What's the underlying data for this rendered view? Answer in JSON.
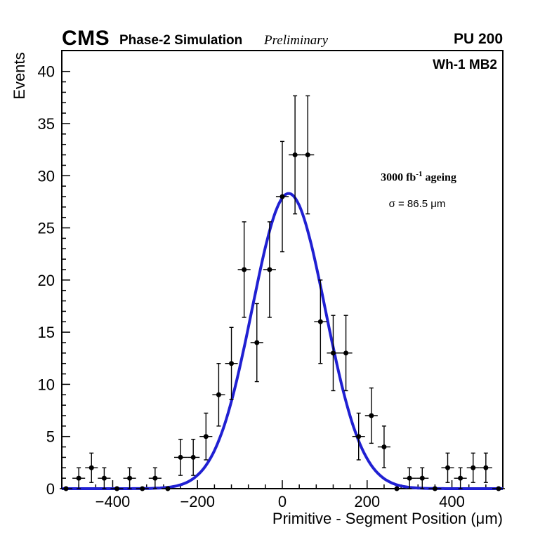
{
  "header": {
    "cms": "CMS",
    "subtitle": "Phase-2 Simulation",
    "preliminary": "Preliminary",
    "pu": "PU 200"
  },
  "annotations": {
    "region": "Wh-1 MB2",
    "ageing_prefix": "3000 fb",
    "ageing_sup": "-1",
    "ageing_suffix": " ageing",
    "sigma": "σ = 86.5 μm"
  },
  "chart_data": {
    "type": "scatter",
    "title": "",
    "xlabel": "Primitive - Segment Position (μm)",
    "ylabel": "Events",
    "xlim": [
      -520,
      520
    ],
    "ylim": [
      0,
      42
    ],
    "x_major_ticks": [
      -400,
      -200,
      0,
      200,
      400
    ],
    "x_minor_step": 40,
    "y_major_ticks": [
      0,
      5,
      10,
      15,
      20,
      25,
      30,
      35,
      40
    ],
    "y_minor_step": 1,
    "grid": false,
    "legend": "none",
    "bin_half_width": 15,
    "points": [
      [
        -510,
        0,
        0
      ],
      [
        -480,
        1,
        1
      ],
      [
        -450,
        2,
        1.41
      ],
      [
        -420,
        1,
        1
      ],
      [
        -390,
        0,
        0
      ],
      [
        -360,
        1,
        1
      ],
      [
        -330,
        0,
        0
      ],
      [
        -300,
        1,
        1
      ],
      [
        -270,
        0,
        0
      ],
      [
        -240,
        3,
        1.73
      ],
      [
        -210,
        3,
        1.73
      ],
      [
        -180,
        5,
        2.24
      ],
      [
        -150,
        9,
        3
      ],
      [
        -120,
        12,
        3.46
      ],
      [
        -90,
        21,
        4.58
      ],
      [
        -60,
        14,
        3.74
      ],
      [
        -30,
        21,
        4.58
      ],
      [
        0,
        28,
        5.29
      ],
      [
        30,
        32,
        5.66
      ],
      [
        60,
        32,
        5.66
      ],
      [
        90,
        16,
        4
      ],
      [
        120,
        13,
        3.61
      ],
      [
        150,
        13,
        3.61
      ],
      [
        180,
        5,
        2.24
      ],
      [
        210,
        7,
        2.65
      ],
      [
        240,
        4,
        2
      ],
      [
        270,
        0,
        0
      ],
      [
        300,
        1,
        1
      ],
      [
        330,
        1,
        1
      ],
      [
        360,
        0,
        0
      ],
      [
        390,
        2,
        1.41
      ],
      [
        420,
        1,
        1
      ],
      [
        450,
        2,
        1.41
      ],
      [
        480,
        2,
        1.41
      ],
      [
        510,
        0,
        0
      ]
    ],
    "fit": {
      "type": "gaussian",
      "amplitude": 28.3,
      "mean": 15,
      "sigma": 86.5
    },
    "colors": {
      "fit": "#2020d2",
      "points": "#000000",
      "frame": "#000000",
      "text": "#000000"
    }
  }
}
